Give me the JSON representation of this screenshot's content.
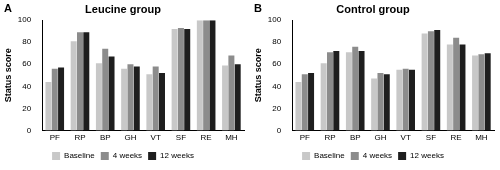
{
  "chart_data": [
    {
      "type": "bar",
      "title": "Leucine group",
      "annotations": [
        "A"
      ],
      "y_label": "Status score",
      "categories": [
        "PF",
        "RP",
        "BP",
        "GH",
        "VT",
        "SF",
        "RE",
        "MH"
      ],
      "series": [
        {
          "name": "Baseline",
          "color": "#c8c8c8",
          "values": [
            44,
            81,
            61,
            56,
            51,
            92,
            100,
            59
          ]
        },
        {
          "name": "4 weeks",
          "color": "#8c8c8c",
          "values": [
            56,
            89,
            74,
            60,
            58,
            93,
            100,
            68
          ]
        },
        {
          "name": "12 weeks",
          "color": "#1e1e1e",
          "values": [
            57,
            89,
            67,
            58,
            52,
            92,
            100,
            60
          ]
        }
      ],
      "ylim": [
        0,
        100
      ],
      "yticks": [
        0,
        20,
        40,
        60,
        80,
        100
      ],
      "grid": false,
      "legend": "bottom"
    },
    {
      "type": "bar",
      "title": "Control group",
      "annotations": [
        "B"
      ],
      "y_label": "Status score",
      "categories": [
        "PF",
        "RP",
        "BP",
        "GH",
        "VT",
        "SF",
        "RE",
        "MH"
      ],
      "series": [
        {
          "name": "Baseline",
          "color": "#c8c8c8",
          "values": [
            44,
            61,
            71,
            47,
            55,
            88,
            78,
            68
          ]
        },
        {
          "name": "4 weeks",
          "color": "#8c8c8c",
          "values": [
            51,
            71,
            76,
            52,
            56,
            90,
            84,
            69
          ]
        },
        {
          "name": "12 weeks",
          "color": "#1e1e1e",
          "values": [
            52,
            72,
            72,
            51,
            55,
            91,
            78,
            70
          ]
        }
      ],
      "ylim": [
        0,
        100
      ],
      "yticks": [
        0,
        20,
        40,
        60,
        80,
        100
      ],
      "grid": false,
      "legend": "bottom"
    }
  ]
}
